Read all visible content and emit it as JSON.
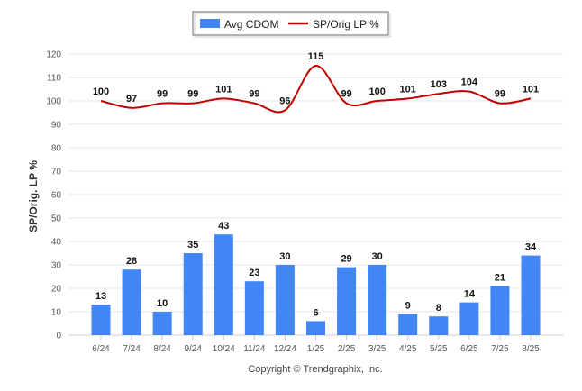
{
  "chart_data": {
    "type": "bar",
    "categories": [
      "6/24",
      "7/24",
      "8/24",
      "9/24",
      "10/24",
      "11/24",
      "12/24",
      "1/25",
      "2/25",
      "3/25",
      "4/25",
      "5/25",
      "6/25",
      "7/25",
      "8/25"
    ],
    "series": [
      {
        "name": "Avg CDOM",
        "type": "bar",
        "color": "#4285f4",
        "values": [
          13,
          28,
          10,
          35,
          43,
          23,
          30,
          6,
          29,
          30,
          9,
          8,
          14,
          21,
          34
        ]
      },
      {
        "name": "SP/Orig LP %",
        "type": "line",
        "color": "#c00000",
        "values": [
          100,
          97,
          99,
          99,
          101,
          99,
          96,
          115,
          99,
          100,
          101,
          103,
          104,
          99,
          101
        ]
      }
    ],
    "ylabel": "SP/Orig. LP %",
    "xlabel": "",
    "ylim": [
      0,
      120
    ],
    "yticks": [
      0,
      10,
      20,
      30,
      40,
      50,
      60,
      70,
      80,
      90,
      100,
      110,
      120
    ],
    "grid": true,
    "legend": "top-center"
  },
  "footer": {
    "copyright": "Copyright © Trendgraphix, Inc."
  },
  "colors": {
    "bar": "#4285f4",
    "line": "#c00000",
    "grid": "#e6e6e6"
  }
}
